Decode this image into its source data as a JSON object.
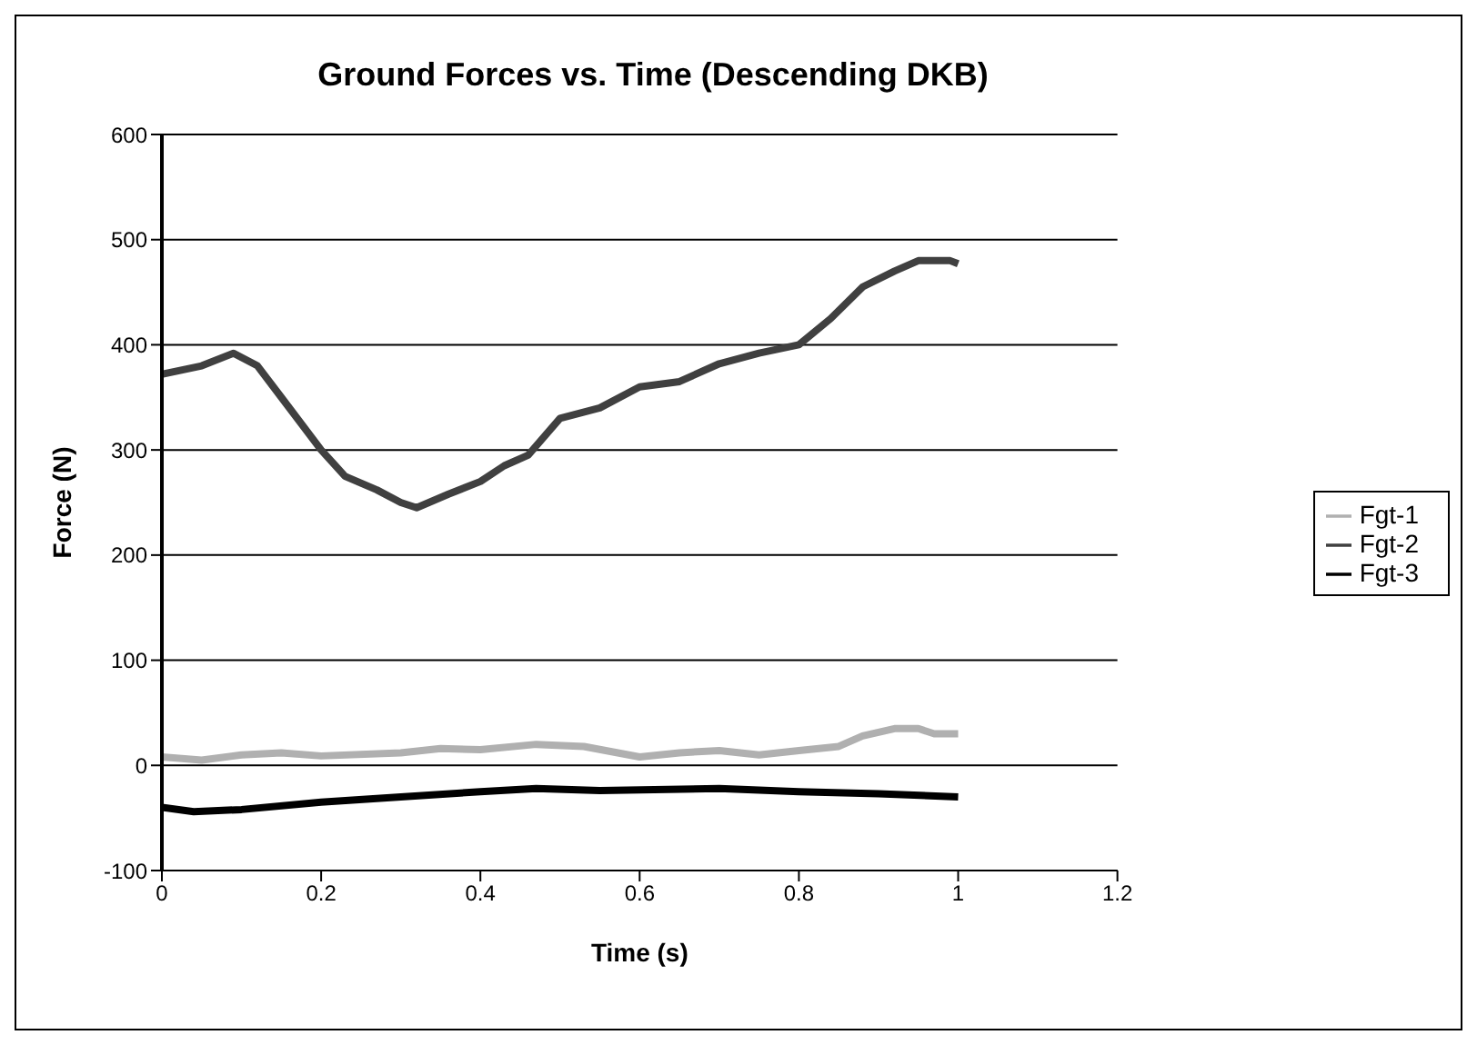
{
  "chart_data": {
    "type": "line",
    "title": "Ground Forces vs. Time (Descending DKB)",
    "xlabel": "Time (s)",
    "ylabel": "Force (N)",
    "xlim": [
      0,
      1.2
    ],
    "xticks": [
      0,
      0.2,
      0.4,
      0.6,
      0.8,
      1,
      1.2
    ],
    "ylim": [
      -100,
      600
    ],
    "yticks": [
      -100,
      0,
      100,
      200,
      300,
      400,
      500,
      600
    ],
    "grid": "y",
    "legend": "right",
    "marker": "none",
    "line_style": "solid",
    "series": [
      {
        "name": "Fgt-1",
        "color": "#b0b0b0",
        "x": [
          0,
          0.05,
          0.1,
          0.15,
          0.2,
          0.3,
          0.35,
          0.4,
          0.47,
          0.53,
          0.6,
          0.65,
          0.7,
          0.75,
          0.8,
          0.85,
          0.88,
          0.92,
          0.95,
          0.97,
          1.0
        ],
        "values": [
          8,
          5,
          10,
          12,
          9,
          12,
          16,
          15,
          20,
          18,
          8,
          12,
          14,
          10,
          14,
          18,
          28,
          35,
          35,
          30,
          30
        ]
      },
      {
        "name": "Fgt-2",
        "color": "#404040",
        "x": [
          0,
          0.05,
          0.09,
          0.12,
          0.15,
          0.2,
          0.23,
          0.27,
          0.3,
          0.32,
          0.36,
          0.4,
          0.43,
          0.46,
          0.5,
          0.55,
          0.6,
          0.65,
          0.7,
          0.75,
          0.8,
          0.84,
          0.88,
          0.92,
          0.95,
          0.99,
          1.0
        ],
        "values": [
          372,
          380,
          392,
          380,
          350,
          300,
          275,
          262,
          250,
          245,
          258,
          270,
          285,
          295,
          330,
          340,
          360,
          365,
          382,
          392,
          400,
          425,
          455,
          470,
          480,
          480,
          477
        ]
      },
      {
        "name": "Fgt-3",
        "color": "#000000",
        "x": [
          0,
          0.04,
          0.1,
          0.2,
          0.3,
          0.4,
          0.47,
          0.55,
          0.7,
          0.8,
          0.9,
          1.0
        ],
        "values": [
          -40,
          -44,
          -42,
          -35,
          -30,
          -25,
          -22,
          -24,
          -22,
          -25,
          -27,
          -30
        ]
      }
    ]
  }
}
